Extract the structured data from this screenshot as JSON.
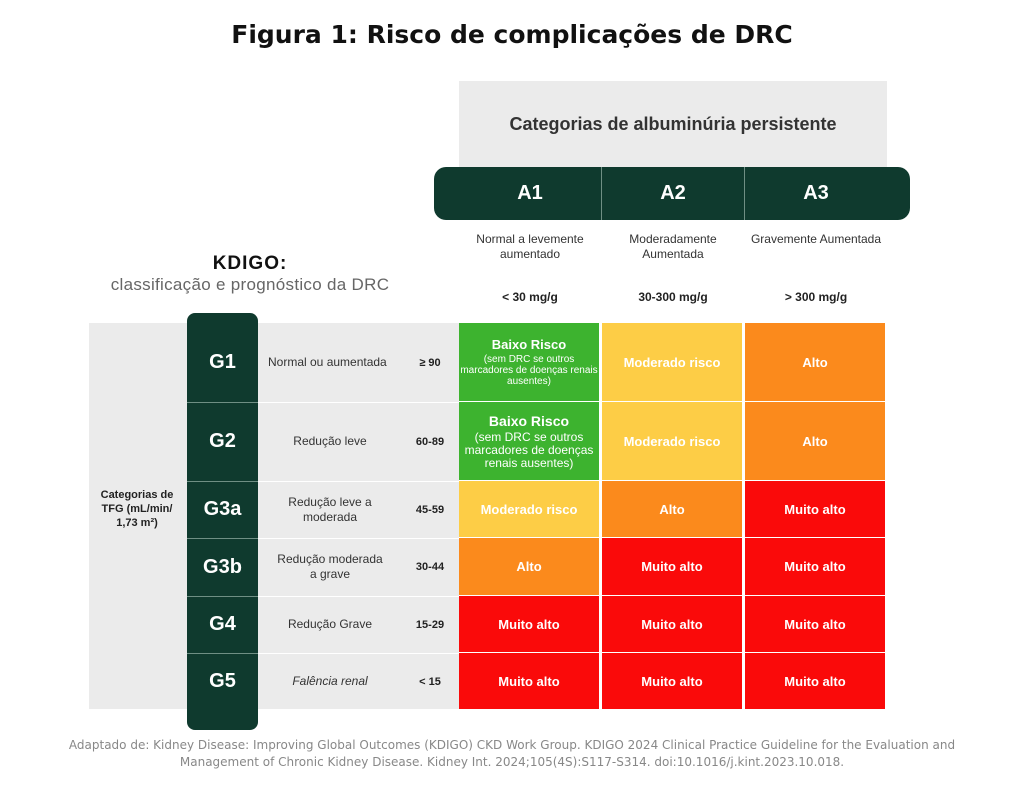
{
  "title": "Figura 1: Risco de complicações de DRC",
  "albuminuria_header": "Categorias de albuminúria persistente",
  "albuminuria_categories": [
    {
      "code": "A1",
      "description": "Normal a levemente aumentado",
      "range": "< 30 mg/g"
    },
    {
      "code": "A2",
      "description": "Moderadamente Aumentada",
      "range": "30-300 mg/g"
    },
    {
      "code": "A3",
      "description": "Gravemente Aumentada",
      "range": "> 300 mg/g"
    }
  ],
  "kdigo": {
    "title": "KDIGO:",
    "subtitle": "classificação e prognóstico da DRC"
  },
  "gfr_label": "Categorias de TFG (mL/min/ 1,73 m²)",
  "gfr_rows": [
    {
      "code": "G1",
      "description": "Normal ou aumentada",
      "range": "≥ 90"
    },
    {
      "code": "G2",
      "description": "Redução leve",
      "range": "60-89"
    },
    {
      "code": "G3a",
      "description": "Redução leve a moderada",
      "range": "45-59"
    },
    {
      "code": "G3b",
      "description": "Redução moderada a grave",
      "range": "30-44"
    },
    {
      "code": "G4",
      "description": "Redução Grave",
      "range": "15-29"
    },
    {
      "code": "G5",
      "description": "Falência renal",
      "range": "< 15"
    }
  ],
  "risk_grid": [
    [
      {
        "label": "Baixo Risco",
        "note": "(sem DRC se outros marcadores de doenças renais ausentes)",
        "level": "low"
      },
      {
        "label": "Moderado risco",
        "note": "",
        "level": "moderate"
      },
      {
        "label": "Alto",
        "note": "",
        "level": "high"
      }
    ],
    [
      {
        "label": "Baixo Risco",
        "note": "(sem DRC se outros marcadores de doenças renais ausentes)",
        "level": "low"
      },
      {
        "label": "Moderado risco",
        "note": "",
        "level": "moderate"
      },
      {
        "label": "Alto",
        "note": "",
        "level": "high"
      }
    ],
    [
      {
        "label": "Moderado risco",
        "note": "",
        "level": "moderate"
      },
      {
        "label": "Alto",
        "note": "",
        "level": "high"
      },
      {
        "label": "Muito alto",
        "note": "",
        "level": "very-high"
      }
    ],
    [
      {
        "label": "Alto",
        "note": "",
        "level": "high"
      },
      {
        "label": "Muito alto",
        "note": "",
        "level": "very-high"
      },
      {
        "label": "Muito alto",
        "note": "",
        "level": "very-high"
      }
    ],
    [
      {
        "label": "Muito alto",
        "note": "",
        "level": "very-high"
      },
      {
        "label": "Muito alto",
        "note": "",
        "level": "very-high"
      },
      {
        "label": "Muito alto",
        "note": "",
        "level": "very-high"
      }
    ],
    [
      {
        "label": "Muito alto",
        "note": "",
        "level": "very-high"
      },
      {
        "label": "Muito alto",
        "note": "",
        "level": "very-high"
      },
      {
        "label": "Muito alto",
        "note": "",
        "level": "very-high"
      }
    ]
  ],
  "colors": {
    "low": "#3db32f",
    "moderate": "#fdcd46",
    "high": "#fb8a1c",
    "very-high": "#fa0a0a",
    "header_dark": "#0f3a2e"
  },
  "citation_line1": "Adaptado de: Kidney Disease: Improving Global Outcomes (KDIGO) CKD Work Group. KDIGO 2024 Clinical Practice Guideline for the Evaluation and",
  "citation_line2": "Management of Chronic Kidney Disease. Kidney Int. 2024;105(4S):S117-S314. doi:10.1016/j.kint.2023.10.018."
}
